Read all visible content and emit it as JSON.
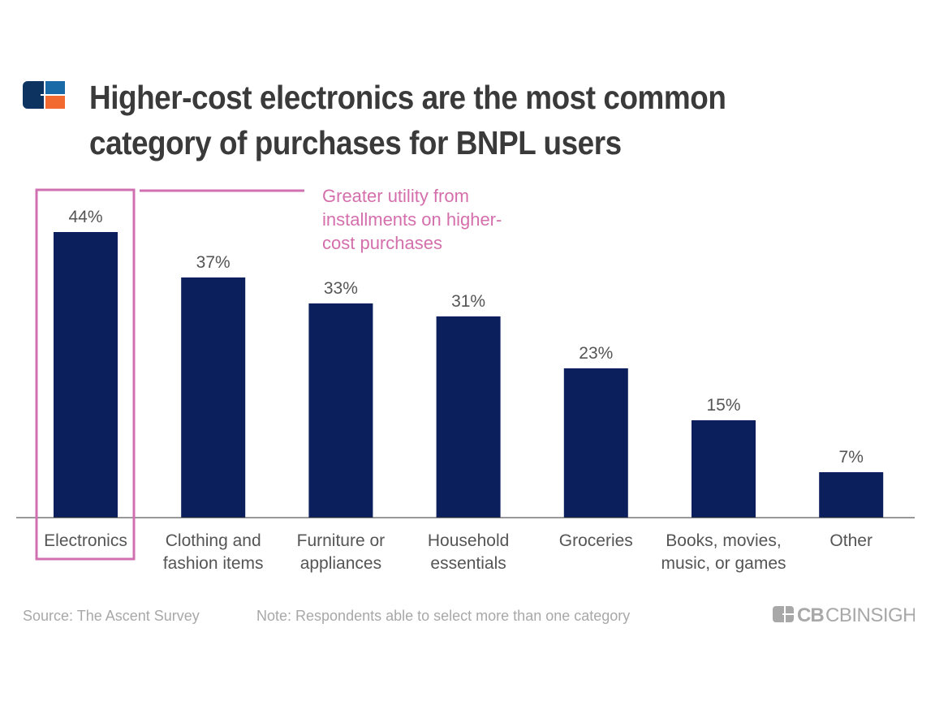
{
  "title": "Higher-cost electronics are the most common category of purchases for BNPL users",
  "title_lines": [
    "Higher-cost electronics are the most common",
    "category of purchases for BNPL users"
  ],
  "annotation": "Greater utility from installments on higher-cost purchases",
  "annotation_lines": [
    "Greater utility from",
    "installments on higher-",
    "cost purchases"
  ],
  "source": "Source: The Ascent Survey",
  "note": "Note: Respondents able to select more than one category",
  "brand": "CBINSIGHTS",
  "colors": {
    "bar": "#0b1f5c",
    "highlight": "#d070b0",
    "text": "#555555",
    "logo_dark": "#0d3460",
    "logo_blue": "#1a6aa8",
    "logo_orange": "#f26a30"
  },
  "chart_data": {
    "type": "bar",
    "categories": [
      [
        "Electronics"
      ],
      [
        "Clothing and",
        "fashion items"
      ],
      [
        "Furniture or",
        "appliances"
      ],
      [
        "Household",
        "essentials"
      ],
      [
        "Groceries"
      ],
      [
        "Books, movies,",
        "music, or games"
      ],
      [
        "Other"
      ]
    ],
    "values": [
      44,
      37,
      33,
      31,
      23,
      15,
      7
    ],
    "data_labels": [
      "44%",
      "37%",
      "33%",
      "31%",
      "23%",
      "15%",
      "7%"
    ],
    "unit": "%",
    "ylim": [
      0,
      44
    ],
    "grid": false,
    "highlighted_category": "Electronics"
  }
}
